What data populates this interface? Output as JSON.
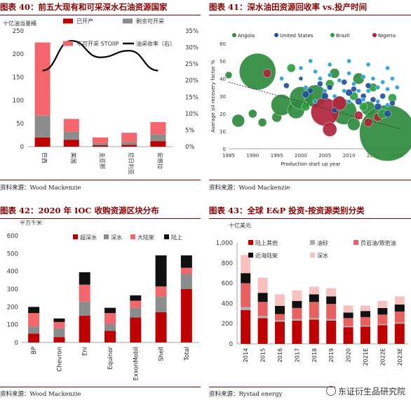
{
  "panels": {
    "p40": {
      "title": "图表 40：前五大现有和可采深水石油资源国家",
      "source": "资料来源：Wood Mackenzie"
    },
    "p41": {
      "title": "图表 41：深水油田资源回收率 vs.投产时间",
      "source": "资料来源：Wood Mackenzie"
    },
    "p42": {
      "title": "图表 42：2020 年 IOC 收购资源区块分布",
      "source": "资料来源：Wood Mackenzie"
    },
    "p43": {
      "title": "图表 43：全球 E&P 投资-按资源类别分类",
      "source": "资料来源：Rystad energy"
    }
  },
  "watermark": "东证衍生品研究院",
  "colors": {
    "red": "#c00000",
    "salmon": "#f4666c",
    "gray": "#8c8c8c",
    "black": "#111111",
    "pink": "#f9c0c0",
    "lightred": "#e86060"
  },
  "chart_data": [
    {
      "id": "c40",
      "type": "bar",
      "ylabel": "十亿油当量桶",
      "categories": [
        "巴西",
        "美国",
        "圭亚那",
        "尼日利亚",
        "安哥拉"
      ],
      "ylim": [
        0,
        250
      ],
      "yticks": [
        0,
        50,
        100,
        150,
        200,
        250
      ],
      "y2lim": [
        0,
        0.35
      ],
      "y2ticks": [
        "0%",
        "5%",
        "10%",
        "15%",
        "20%",
        "25%",
        "30%",
        "35%"
      ],
      "series": [
        {
          "name": "已开产",
          "color": "#c00000",
          "values": [
            20,
            15,
            3,
            4,
            12
          ]
        },
        {
          "name": "剩余可开采",
          "color": "#8c8c8c",
          "values": [
            47,
            17,
            5,
            6,
            15
          ]
        },
        {
          "name": "不可开采 STOIIP",
          "color": "#f4666c",
          "values": [
            158,
            28,
            12,
            20,
            26
          ]
        },
        {
          "name": "油采收率（右）",
          "color": "#000000",
          "type": "line",
          "values": [
            0.23,
            0.32,
            0.27,
            0.29,
            0.23
          ]
        }
      ],
      "legend_position": "top"
    },
    {
      "id": "c41",
      "type": "scatter",
      "ylabel": "Average oil recovery factor %",
      "xlabel": "Production start up year",
      "xlim": [
        1985,
        2022
      ],
      "xticks": [
        1985,
        1990,
        1995,
        2000,
        2005,
        2010,
        2015,
        2020
      ],
      "ylim": [
        0,
        60
      ],
      "yticks": [
        0,
        10,
        20,
        30,
        40,
        50,
        60
      ],
      "series": [
        {
          "name": "Angola",
          "color": "#2e8b3e",
          "points": [
            [
              1985,
              42,
              5
            ],
            [
              1987,
              16,
              9
            ],
            [
              1990,
              20,
              6
            ],
            [
              1991,
              44,
              26
            ],
            [
              1992,
              15,
              6
            ],
            [
              1995,
              18,
              7
            ],
            [
              1996,
              25,
              15
            ],
            [
              1999,
              22,
              12
            ],
            [
              2000,
              29,
              16
            ],
            [
              2003,
              30,
              16
            ],
            [
              2007,
              43,
              7
            ],
            [
              2008,
              27,
              8
            ],
            [
              2009,
              21,
              18
            ],
            [
              2011,
              14,
              9
            ],
            [
              2012,
              40,
              8
            ],
            [
              2014,
              23,
              10
            ],
            [
              2018,
              9,
              40
            ]
          ]
        },
        {
          "name": "United States",
          "color": "#1f4e9e",
          "points": [
            [
              1997,
              36,
              4
            ],
            [
              2000,
              40,
              3
            ],
            [
              2001,
              31,
              5
            ],
            [
              2002,
              33,
              4
            ],
            [
              2004,
              37,
              4
            ],
            [
              2005,
              30,
              5
            ],
            [
              2006,
              35,
              4
            ],
            [
              2007,
              22,
              4
            ],
            [
              2009,
              38,
              4
            ],
            [
              2010,
              32,
              5
            ],
            [
              2011,
              34,
              4
            ],
            [
              2012,
              27,
              5
            ],
            [
              2013,
              30,
              4
            ],
            [
              2014,
              36,
              4
            ],
            [
              2015,
              28,
              4
            ],
            [
              2016,
              24,
              5
            ],
            [
              2017,
              30,
              4
            ],
            [
              2018,
              20,
              5
            ],
            [
              2019,
              26,
              4
            ]
          ]
        },
        {
          "name": "Brazil",
          "color": "#2aa040",
          "points": [
            [
              1998,
              46,
              6
            ],
            [
              2001,
              24,
              6
            ],
            [
              2006,
              37,
              6
            ],
            [
              2011,
              30,
              6
            ],
            [
              2013,
              24,
              6
            ],
            [
              2015,
              35,
              6
            ],
            [
              2017,
              20,
              7
            ],
            [
              2019,
              29,
              6
            ]
          ]
        },
        {
          "name": "Nigeria",
          "color": "#b0243b",
          "points": [
            [
              1993,
              43,
              6
            ],
            [
              2005,
              21,
              20
            ],
            [
              2006,
              11,
              10
            ],
            [
              2008,
              26,
              10
            ],
            [
              2012,
              19,
              6
            ],
            [
              2014,
              15,
              6
            ],
            [
              2016,
              18,
              6
            ]
          ]
        },
        {
          "name": "",
          "color": "#22a0d8",
          "points": [
            [
              1996,
              40,
              3
            ],
            [
              2000,
              46,
              3
            ],
            [
              2001,
              35,
              3
            ],
            [
              2003,
              44,
              3
            ],
            [
              2004,
              40,
              3
            ],
            [
              2005,
              33,
              3
            ],
            [
              2006,
              42,
              3
            ],
            [
              2008,
              39,
              3
            ],
            [
              2009,
              33,
              3
            ],
            [
              2010,
              43,
              3
            ],
            [
              2011,
              37,
              3
            ],
            [
              2012,
              33,
              3
            ],
            [
              2013,
              41,
              3
            ],
            [
              2014,
              33,
              3
            ],
            [
              2015,
              40,
              3
            ],
            [
              2016,
              35,
              3
            ],
            [
              2017,
              38,
              3
            ],
            [
              2018,
              34,
              3
            ],
            [
              2019,
              40,
              3
            ],
            [
              2020,
              35,
              3
            ],
            [
              2003,
              27,
              3
            ],
            [
              2007,
              30,
              3
            ],
            [
              2010,
              27,
              3
            ],
            [
              2013,
              28,
              3
            ],
            [
              2016,
              27,
              3
            ],
            [
              2018,
              25,
              3
            ],
            [
              2002,
              50,
              3
            ],
            [
              2006,
              48,
              3
            ],
            [
              2010,
              50,
              3
            ],
            [
              2014,
              48,
              3
            ],
            [
              2018,
              46,
              3
            ]
          ]
        }
      ],
      "trendline": [
        [
          1985,
          38
        ],
        [
          2021,
          11
        ]
      ],
      "legend_position": "top"
    },
    {
      "id": "c42",
      "type": "bar",
      "ylabel": "平方千米",
      "categories": [
        "BP",
        "Chevron",
        "Eni",
        "Equinor",
        "ExxonMobil",
        "Shell",
        "Total"
      ],
      "ylim": [
        0,
        600
      ],
      "yticks": [
        0,
        100,
        200,
        300,
        400,
        500,
        600
      ],
      "series": [
        {
          "name": "超深水",
          "color": "#c00000",
          "values": [
            50,
            30,
            150,
            65,
            140,
            170,
            300
          ]
        },
        {
          "name": "深水",
          "color": "#8c8c8c",
          "values": [
            40,
            50,
            80,
            40,
            55,
            90,
            85
          ]
        },
        {
          "name": "大陆架",
          "color": "#f4666c",
          "values": [
            75,
            35,
            95,
            60,
            40,
            55,
            35
          ]
        },
        {
          "name": "陆上",
          "color": "#111111",
          "values": [
            35,
            20,
            70,
            30,
            30,
            175,
            70
          ]
        }
      ],
      "legend_position": "top"
    },
    {
      "id": "c43",
      "type": "bar",
      "ylabel": "十亿美元",
      "categories": [
        "2014",
        "2015",
        "2016",
        "2017",
        "2018",
        "2019",
        "2020",
        "2021E",
        "2022E",
        "2023E"
      ],
      "ylim": [
        0,
        1000
      ],
      "yticks": [
        "0",
        "200",
        "400",
        "600",
        "800",
        "1,000"
      ],
      "series": [
        {
          "name": "陆上其他",
          "color": "#c00000",
          "values": [
            335,
            255,
            220,
            230,
            240,
            230,
            165,
            170,
            185,
            200
          ]
        },
        {
          "name": "油砂",
          "color": "#b0b0b0",
          "values": [
            30,
            20,
            15,
            15,
            15,
            15,
            10,
            10,
            10,
            10
          ]
        },
        {
          "name": "页岩油/致密油",
          "color": "#e86060",
          "values": [
            235,
            140,
            60,
            110,
            160,
            150,
            80,
            85,
            95,
            110
          ]
        },
        {
          "name": "近海陆架",
          "color": "#111111",
          "values": [
            100,
            90,
            80,
            70,
            75,
            75,
            55,
            60,
            65,
            70
          ]
        },
        {
          "name": "深水",
          "color": "#f9c0c0",
          "values": [
            180,
            150,
            115,
            105,
            75,
            80,
            70,
            55,
            70,
            80
          ]
        }
      ],
      "legend_position": "top"
    }
  ]
}
